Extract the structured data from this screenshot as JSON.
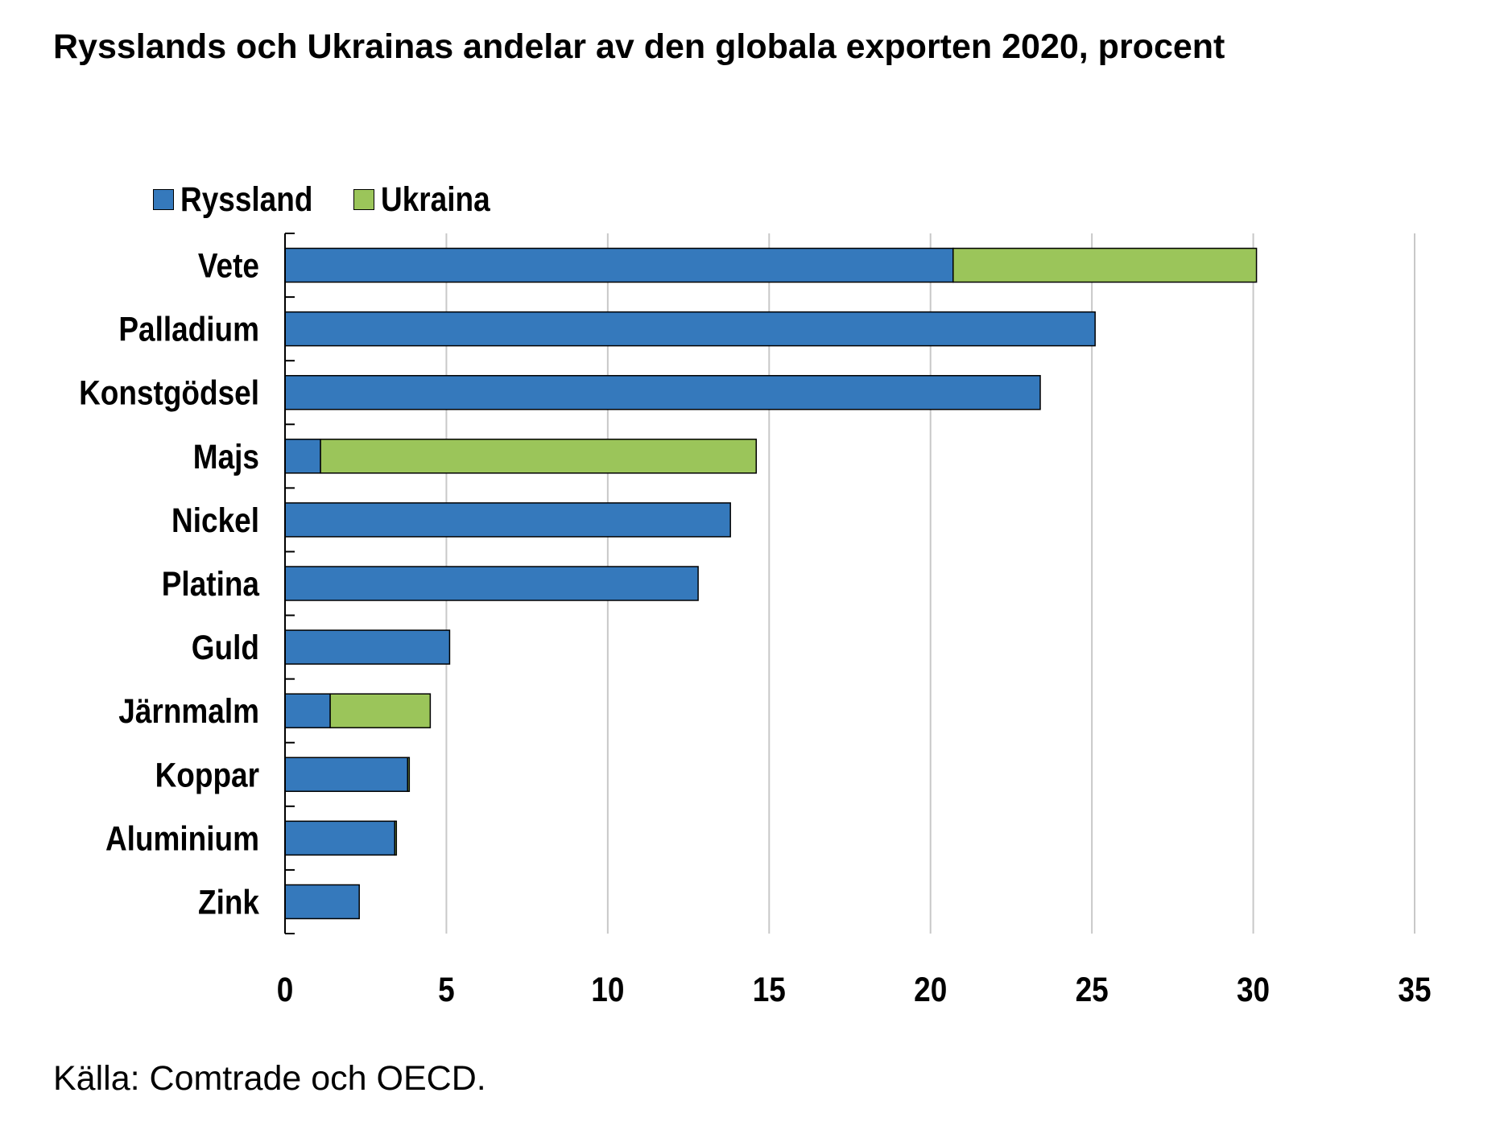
{
  "title": "Rysslands och Ukrainas andelar av den globala exporten 2020, procent",
  "source": "Källa: Comtrade och OECD.",
  "colors": {
    "ryssland": "#3579BC",
    "ukraina": "#9BC55A",
    "grid": "#C8C8C8",
    "axis": "#000000"
  },
  "chart_data": {
    "type": "bar",
    "orientation": "horizontal",
    "stacked": true,
    "title": "Rysslands och Ukrainas andelar av den globala exporten 2020, procent",
    "xlabel": "",
    "ylabel": "",
    "xlim": [
      0,
      35
    ],
    "xticks": [
      0,
      5,
      10,
      15,
      20,
      25,
      30,
      35
    ],
    "grid": "vertical",
    "legend_position": "top-left",
    "categories": [
      "Vete",
      "Palladium",
      "Konstgödsel",
      "Majs",
      "Nickel",
      "Platina",
      "Guld",
      "Järnmalm",
      "Koppar",
      "Aluminium",
      "Zink"
    ],
    "series": [
      {
        "name": "Ryssland",
        "color": "#3579BC",
        "values": [
          20.7,
          25.1,
          23.4,
          1.1,
          13.8,
          12.8,
          5.1,
          1.4,
          3.8,
          3.4,
          2.3
        ]
      },
      {
        "name": "Ukraina",
        "color": "#9BC55A",
        "values": [
          9.4,
          0.0,
          0.0,
          13.5,
          0.0,
          0.0,
          0.0,
          3.1,
          0.05,
          0.05,
          0.0
        ]
      }
    ]
  }
}
